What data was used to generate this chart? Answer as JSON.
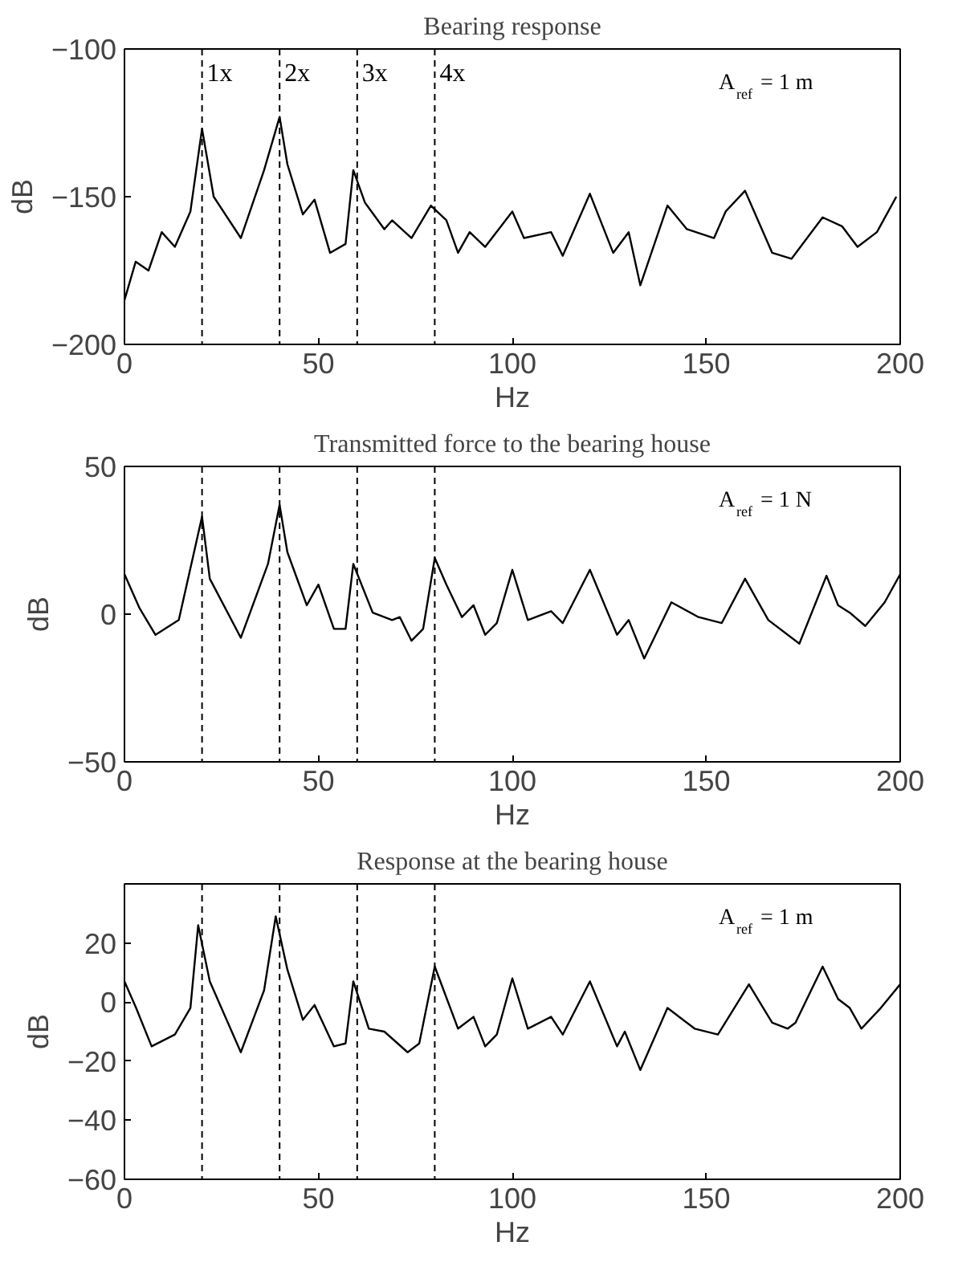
{
  "chart_data": [
    {
      "type": "line",
      "title": "Bearing response",
      "xlabel": "Hz",
      "ylabel": "dB",
      "xlim": [
        0,
        200
      ],
      "xticks": [
        0,
        50,
        100,
        150,
        200
      ],
      "ylim": [
        -200,
        -100
      ],
      "yticks": [
        -200,
        -150,
        -100
      ],
      "grid": false,
      "annotations": [
        "A$_{ref}$ = 1 m"
      ],
      "ref_lines": [
        {
          "axis": "x",
          "value": 20,
          "label": "1x",
          "line_style": "dashed"
        },
        {
          "axis": "x",
          "value": 40,
          "label": "2x",
          "line_style": "dashed"
        },
        {
          "axis": "x",
          "value": 60,
          "label": "3x",
          "line_style": "dashed"
        },
        {
          "axis": "x",
          "value": 80,
          "label": "4x",
          "line_style": "dashed"
        }
      ],
      "series": [
        {
          "color": "#000000",
          "x": [
            0,
            2.9,
            6.2,
            9.6,
            13,
            17,
            20,
            23,
            30,
            36,
            40,
            42,
            46,
            49,
            53,
            57,
            59,
            62,
            67,
            69,
            74,
            79,
            83,
            86,
            89,
            93,
            100,
            103,
            110,
            113,
            120,
            126,
            130,
            133,
            140,
            145,
            152,
            155,
            160,
            167,
            172,
            180,
            185,
            189,
            194,
            199
          ],
          "values": [
            -185,
            -172,
            -175,
            -162,
            -167,
            -155,
            -127,
            -150,
            -164,
            -141,
            -123,
            -139,
            -156,
            -151,
            -169,
            -166,
            -141,
            -152,
            -161,
            -158,
            -164,
            -153,
            -158,
            -169,
            -162,
            -167,
            -155,
            -164,
            -162,
            -170,
            -149,
            -169,
            -162,
            -180,
            -153,
            -161,
            -164,
            -155,
            -148,
            -169,
            -171,
            -157,
            -160,
            -167,
            -162,
            -150
          ]
        }
      ]
    },
    {
      "type": "line",
      "title": "Transmitted force to the bearing house",
      "xlabel": "Hz",
      "ylabel": "dB",
      "xlim": [
        0,
        200
      ],
      "xticks": [
        0,
        50,
        100,
        150,
        200
      ],
      "ylim": [
        -50,
        50
      ],
      "yticks": [
        -50,
        0,
        50
      ],
      "grid": false,
      "annotations": [
        "A$_{ref}$ = 1 N"
      ],
      "ref_lines": [
        {
          "axis": "x",
          "value": 20,
          "line_style": "dashed"
        },
        {
          "axis": "x",
          "value": 40,
          "line_style": "dashed"
        },
        {
          "axis": "x",
          "value": 60,
          "line_style": "dashed"
        },
        {
          "axis": "x",
          "value": 80,
          "line_style": "dashed"
        }
      ],
      "series": [
        {
          "color": "#000000",
          "x": [
            0,
            3.9,
            8,
            14,
            20,
            22,
            30,
            37,
            40,
            42,
            47,
            50,
            54,
            57,
            59,
            64,
            69,
            71,
            74,
            77,
            80,
            83,
            87,
            90,
            93,
            96,
            100,
            104,
            110,
            113,
            120,
            127,
            130,
            134,
            141,
            148,
            154,
            160,
            166,
            174,
            181,
            184,
            187,
            191,
            196,
            200
          ],
          "values": [
            13.5,
            2,
            -7,
            -2,
            33,
            12,
            -8,
            17,
            37,
            21,
            3,
            10,
            -5,
            -5,
            17,
            0.5,
            -2,
            -1,
            -9,
            -5,
            19,
            10,
            -1,
            3,
            -7,
            -3,
            15,
            -2,
            1,
            -3,
            15,
            -7,
            -2,
            -15,
            4,
            -1,
            -3,
            12,
            -2,
            -10,
            13,
            3,
            0.5,
            -4,
            4,
            13.5
          ]
        }
      ]
    },
    {
      "type": "line",
      "title": "Response at the bearing house",
      "xlabel": "Hz",
      "ylabel": "dB",
      "xlim": [
        0,
        200
      ],
      "xticks": [
        0,
        50,
        100,
        150,
        200
      ],
      "ylim": [
        -60,
        40
      ],
      "yticks": [
        -60,
        -40,
        -20,
        0,
        20
      ],
      "grid": false,
      "annotations": [
        "A$_{ref}$ = 1 m"
      ],
      "ref_lines": [
        {
          "axis": "x",
          "value": 20,
          "line_style": "dashed"
        },
        {
          "axis": "x",
          "value": 40,
          "line_style": "dashed"
        },
        {
          "axis": "x",
          "value": 60,
          "line_style": "dashed"
        },
        {
          "axis": "x",
          "value": 80,
          "line_style": "dashed"
        }
      ],
      "series": [
        {
          "color": "#000000",
          "x": [
            0,
            3,
            7,
            13,
            17,
            19,
            22,
            30,
            36,
            39,
            42,
            46,
            49,
            54,
            57,
            59,
            63,
            67,
            73,
            76,
            80,
            86,
            90,
            93,
            96,
            100,
            104,
            110,
            113,
            120,
            127,
            129,
            133,
            140,
            147,
            153,
            161,
            167,
            171,
            173,
            180,
            184,
            187,
            190,
            195,
            200
          ],
          "values": [
            7,
            -2,
            -15,
            -11,
            -2,
            26,
            7,
            -17,
            4,
            29,
            11,
            -6,
            -1,
            -15,
            -14,
            7,
            -9,
            -10,
            -17,
            -14,
            12,
            -9,
            -5,
            -15,
            -11,
            8,
            -9,
            -5,
            -11,
            7,
            -15,
            -10,
            -23,
            -2,
            -9,
            -11,
            6,
            -7,
            -9,
            -7,
            12,
            1,
            -2,
            -9,
            -2,
            6
          ]
        }
      ]
    }
  ]
}
